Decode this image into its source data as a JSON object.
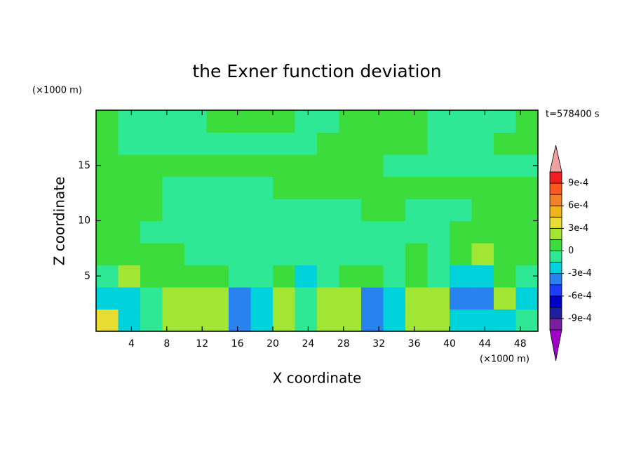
{
  "chart_data": {
    "type": "contour",
    "title": "the Exner function deviation",
    "xlabel": "X coordinate",
    "ylabel": "Z coordinate",
    "x_unit": "(×1000 m)",
    "y_unit": "(×1000 m)",
    "time_label": "t=578400 s",
    "xlim": [
      0,
      50
    ],
    "ylim": [
      0,
      20
    ],
    "xticks": [
      4,
      8,
      12,
      16,
      20,
      24,
      28,
      32,
      36,
      40,
      44,
      48
    ],
    "yticks": [
      5,
      10,
      15
    ],
    "x": [
      1.25,
      3.75,
      6.25,
      8.75,
      11.25,
      13.75,
      16.25,
      18.75,
      21.25,
      23.75,
      26.25,
      28.75,
      31.25,
      33.75,
      36.25,
      38.75,
      41.25,
      43.75,
      46.25,
      48.75
    ],
    "y": [
      1,
      3,
      5,
      7,
      9,
      11,
      13,
      15,
      17,
      19
    ],
    "z": [
      [
        0.0004,
        -0.0002,
        -5e-05,
        0.0002,
        0.0002,
        0.0002,
        -0.00035,
        -0.0002,
        0.0002,
        -5e-05,
        0.0002,
        0.0002,
        -0.00035,
        -0.0002,
        0.0002,
        0.0002,
        -0.0002,
        -0.0002,
        -0.0002,
        -5e-05
      ],
      [
        -0.0002,
        -0.0002,
        -5e-05,
        0.0002,
        0.0002,
        0.0002,
        -0.00035,
        -0.0002,
        0.0002,
        -5e-05,
        0.0002,
        0.0002,
        -0.00035,
        -0.0002,
        0.0002,
        0.0002,
        -0.00035,
        -0.00035,
        0.0002,
        -0.0002
      ],
      [
        -5e-05,
        0.0002,
        5e-05,
        5e-05,
        5e-05,
        5e-05,
        -5e-05,
        -5e-05,
        5e-05,
        -0.0002,
        -5e-05,
        5e-05,
        5e-05,
        -5e-05,
        5e-05,
        -5e-05,
        -0.0002,
        -0.0002,
        5e-05,
        -5e-05
      ],
      [
        5e-05,
        5e-05,
        5e-05,
        5e-05,
        -5e-05,
        -5e-05,
        -5e-05,
        -5e-05,
        -5e-05,
        -5e-05,
        -5e-05,
        -5e-05,
        -5e-05,
        -5e-05,
        5e-05,
        -5e-05,
        5e-05,
        0.0002,
        5e-05,
        5e-05
      ],
      [
        5e-05,
        5e-05,
        -5e-05,
        -5e-05,
        -5e-05,
        -5e-05,
        -5e-05,
        -5e-05,
        -5e-05,
        -5e-05,
        -5e-05,
        -5e-05,
        -5e-05,
        -5e-05,
        -5e-05,
        -5e-05,
        5e-05,
        5e-05,
        5e-05,
        5e-05
      ],
      [
        5e-05,
        5e-05,
        5e-05,
        -5e-05,
        -5e-05,
        -5e-05,
        -5e-05,
        -5e-05,
        -5e-05,
        -5e-05,
        -5e-05,
        -5e-05,
        5e-05,
        5e-05,
        -5e-05,
        -5e-05,
        -5e-05,
        5e-05,
        5e-05,
        5e-05
      ],
      [
        5e-05,
        5e-05,
        5e-05,
        -5e-05,
        -5e-05,
        -5e-05,
        -5e-05,
        -5e-05,
        5e-05,
        5e-05,
        5e-05,
        5e-05,
        5e-05,
        5e-05,
        5e-05,
        5e-05,
        5e-05,
        5e-05,
        5e-05,
        5e-05
      ],
      [
        5e-05,
        5e-05,
        5e-05,
        5e-05,
        5e-05,
        5e-05,
        5e-05,
        5e-05,
        5e-05,
        5e-05,
        5e-05,
        5e-05,
        5e-05,
        -5e-05,
        -5e-05,
        -5e-05,
        -5e-05,
        -5e-05,
        -5e-05,
        -5e-05
      ],
      [
        5e-05,
        -5e-05,
        -5e-05,
        -5e-05,
        -5e-05,
        -5e-05,
        -5e-05,
        -5e-05,
        -5e-05,
        -5e-05,
        5e-05,
        5e-05,
        5e-05,
        5e-05,
        5e-05,
        -5e-05,
        -5e-05,
        -5e-05,
        5e-05,
        5e-05
      ],
      [
        5e-05,
        -5e-05,
        -5e-05,
        -5e-05,
        -5e-05,
        5e-05,
        5e-05,
        5e-05,
        5e-05,
        -5e-05,
        -5e-05,
        5e-05,
        5e-05,
        5e-05,
        5e-05,
        -5e-05,
        -5e-05,
        -5e-05,
        -5e-05,
        5e-05
      ]
    ],
    "levels": [
      -0.00105,
      -0.0009,
      -0.00075,
      -0.0006,
      -0.00045,
      -0.0003,
      -0.00015,
      0,
      0.00015,
      0.0003,
      0.00045,
      0.0006,
      0.00075,
      0.0009,
      0.00105
    ],
    "colors": [
      "#7a1fa2",
      "#1e1ea0",
      "#0000c8",
      "#1e3cff",
      "#2882f0",
      "#00d2dc",
      "#2ee896",
      "#3cdc3c",
      "#a0e632",
      "#e6dc32",
      "#f0b41e",
      "#f08228",
      "#fa5a1e",
      "#f01e1e"
    ],
    "under_color": "#a000c8",
    "over_color": "#f0a0a0",
    "colorbar_ticks": [
      {
        "value": 0.0009,
        "label": "9e-4"
      },
      {
        "value": 0.0006,
        "label": "6e-4"
      },
      {
        "value": 0.0003,
        "label": "3e-4"
      },
      0,
      {
        "value": -0.0003,
        "label": "-3e-4"
      },
      {
        "value": -0.0006,
        "label": "-6e-4"
      },
      {
        "value": -0.0009,
        "label": "-9e-4"
      }
    ]
  }
}
